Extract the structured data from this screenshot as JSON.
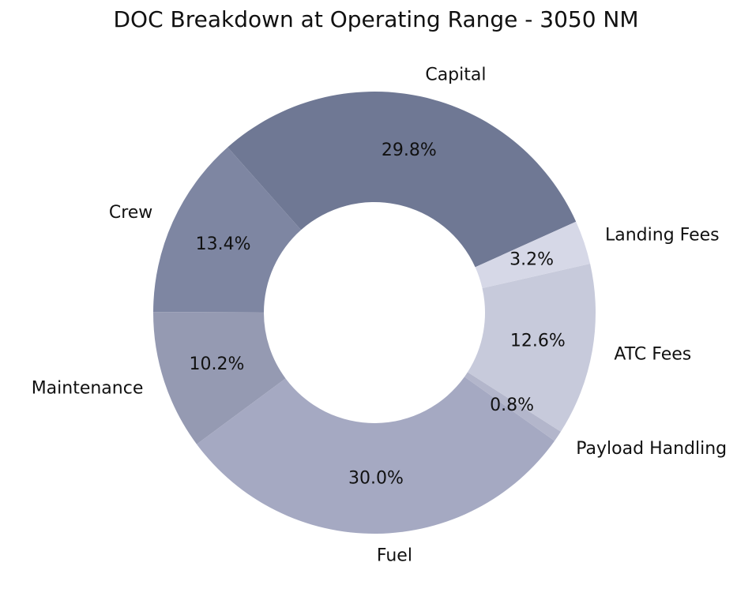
{
  "chart_data": {
    "type": "pie",
    "title": "DOC Breakdown at Operating Range - 3050 NM",
    "donut": true,
    "slices": [
      {
        "label": "Capital",
        "value": 29.8,
        "pct_label": "29.8%",
        "color": "#6f7894"
      },
      {
        "label": "Crew",
        "value": 13.4,
        "pct_label": "13.4%",
        "color": "#7e86a2"
      },
      {
        "label": "Maintenance",
        "value": 10.2,
        "pct_label": "10.2%",
        "color": "#959ab2"
      },
      {
        "label": "Fuel",
        "value": 30.0,
        "pct_label": "30.0%",
        "color": "#a5a9c2"
      },
      {
        "label": "Payload Handling",
        "value": 0.8,
        "pct_label": "0.8%",
        "color": "#b3b6cb"
      },
      {
        "label": "ATC Fees",
        "value": 12.6,
        "pct_label": "12.6%",
        "color": "#c7cadb"
      },
      {
        "label": "Landing Fees",
        "value": 3.2,
        "pct_label": "3.2%",
        "color": "#d6d8e7"
      }
    ]
  }
}
